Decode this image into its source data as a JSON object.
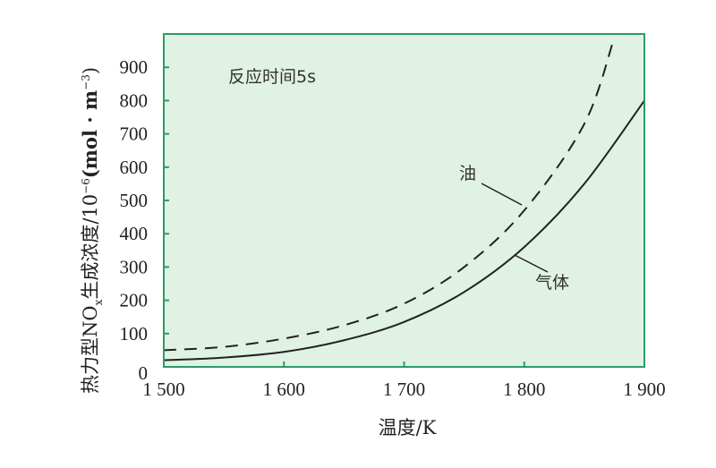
{
  "chart_data": {
    "type": "line",
    "xlabel": "温度/K",
    "ylabel": "热力型NOx生成浓度/10⁻⁶(mol·m⁻³)",
    "ylabel_parts": {
      "main": "热力型NO",
      "sub": "x",
      "rest": "生成浓度/10",
      "exp": "−6",
      "unit": "(mol · m",
      "unit_exp": "−3",
      "close": ")"
    },
    "xlim": [
      1500,
      1900
    ],
    "ylim": [
      0,
      1000
    ],
    "x_ticks": [
      1500,
      1600,
      1700,
      1800,
      1900
    ],
    "x_tick_labels": [
      "1 500",
      "1 600",
      "1 700",
      "1 800",
      "1 900"
    ],
    "y_ticks": [
      0,
      100,
      200,
      300,
      400,
      500,
      600,
      700,
      800,
      900
    ],
    "y_tick_labels": [
      "0",
      "100",
      "200",
      "300",
      "400",
      "500",
      "600",
      "700",
      "800",
      "900"
    ],
    "grid": false,
    "background_color": "#e0f2e3",
    "frame_color": "#2e9a68",
    "annotation": "反应时间5s",
    "series": [
      {
        "name": "油",
        "style": "dashed",
        "color": "#222222",
        "x": [
          1500,
          1550,
          1600,
          1650,
          1700,
          1750,
          1800,
          1850,
          1875
        ],
        "y": [
          50,
          60,
          85,
          125,
          190,
          300,
          470,
          730,
          990
        ]
      },
      {
        "name": "气体",
        "style": "solid",
        "color": "#222222",
        "x": [
          1500,
          1550,
          1600,
          1650,
          1700,
          1750,
          1800,
          1850,
          1900
        ],
        "y": [
          20,
          28,
          45,
          80,
          135,
          225,
          360,
          550,
          800
        ]
      }
    ]
  }
}
